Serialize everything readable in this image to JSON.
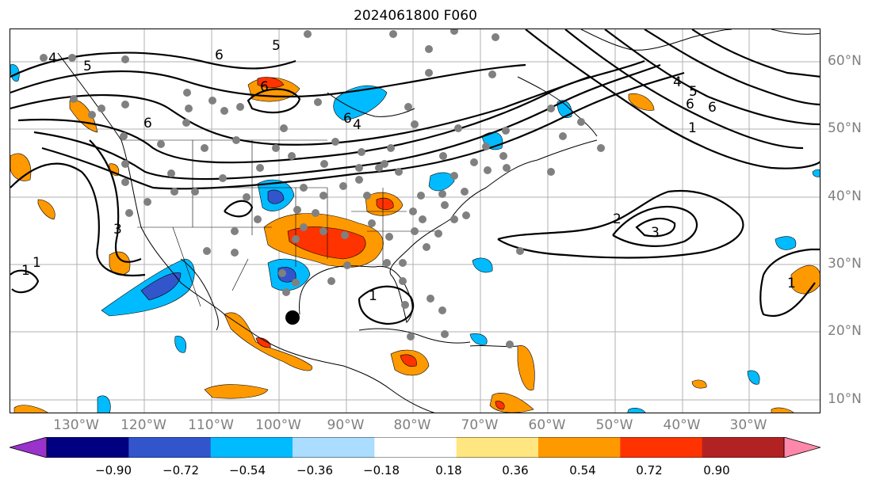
{
  "title": "2024061800 F060",
  "longitude_labels": [
    "130°W",
    "120°W",
    "110°W",
    "100°W",
    "90°W",
    "80°W",
    "70°W",
    "60°W",
    "50°W",
    "40°W",
    "30°W"
  ],
  "latitude_labels": [
    "60°N",
    "50°N",
    "40°N",
    "30°N",
    "20°N",
    "10°N"
  ],
  "contour_labels": [
    "4",
    "5",
    "6",
    "6",
    "6",
    "6",
    "5",
    "4",
    "1",
    "2",
    "3",
    "3",
    "1",
    "1",
    "6",
    "5",
    "4",
    "6",
    "1",
    "1"
  ],
  "colorbar": {
    "tick_labels": [
      "−0.90",
      "−0.72",
      "−0.54",
      "−0.36",
      "−0.18",
      "0.18",
      "0.36",
      "0.54",
      "0.72",
      "0.90"
    ],
    "colors": [
      "#9933cc",
      "#000080",
      "#3355cc",
      "#00bbff",
      "#aaddff",
      "#ffffff",
      "#ffe680",
      "#ff9900",
      "#ff3300",
      "#b22222",
      "#ff88aa"
    ]
  },
  "colors": {
    "negative_light": "#00bbff",
    "negative_mid": "#3355cc",
    "positive_light": "#ff9900",
    "positive_mid": "#ff3300",
    "station": "#808080",
    "storm_marker": "#000000"
  }
}
